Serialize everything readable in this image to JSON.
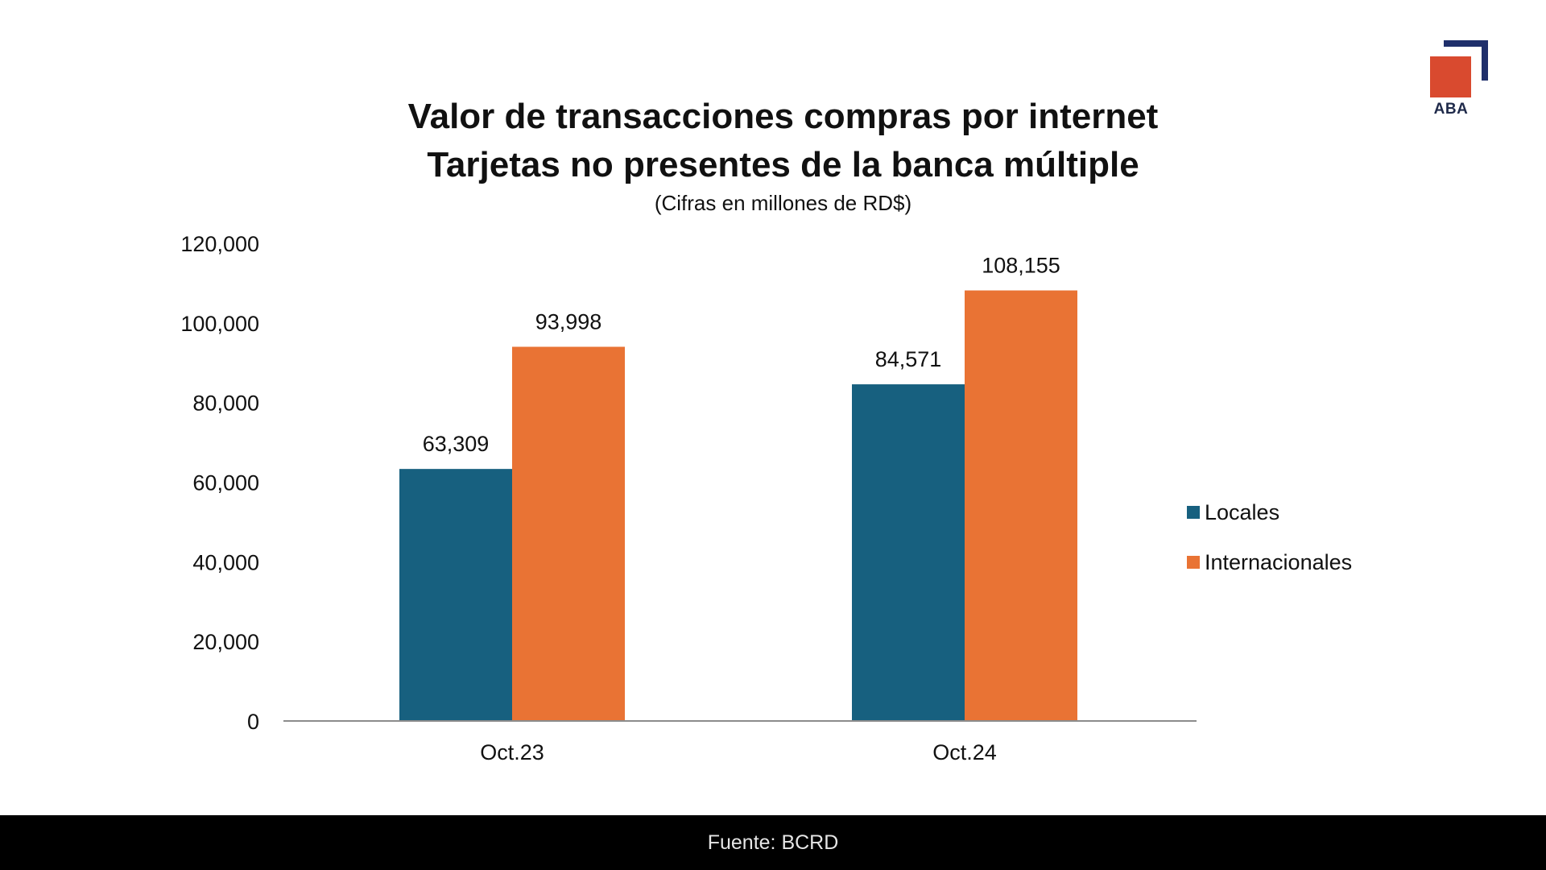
{
  "logo": {
    "text": "ABA",
    "square_color": "#d94a2f",
    "bracket_color": "#1f2f6b"
  },
  "title_lines": [
    "Valor de transacciones compras por internet",
    "Tarjetas no presentes de la banca múltiple"
  ],
  "subtitle": "(Cifras en millones de RD$)",
  "footer": {
    "source": "Fuente: BCRD"
  },
  "chart_data": {
    "type": "bar",
    "title": "Valor de transacciones compras por internet Tarjetas no presentes de la banca múltiple",
    "subtitle": "(Cifras en millones de RD$)",
    "categories": [
      "Oct.23",
      "Oct.24"
    ],
    "series": [
      {
        "name": "Locales",
        "values": [
          63309,
          84571
        ],
        "labels": [
          "63,309",
          "84,571"
        ],
        "color": "#17607f"
      },
      {
        "name": "Internacionales",
        "values": [
          93998,
          108155
        ],
        "labels": [
          "93,998",
          "108,155"
        ],
        "color": "#e97334"
      }
    ],
    "ylim": [
      0,
      120000
    ],
    "yticks": [
      0,
      20000,
      40000,
      60000,
      80000,
      100000,
      120000
    ],
    "ytick_labels": [
      "0",
      "20,000",
      "40,000",
      "60,000",
      "80,000",
      "100,000",
      "120,000"
    ],
    "grid": false,
    "legend_position": "right"
  }
}
